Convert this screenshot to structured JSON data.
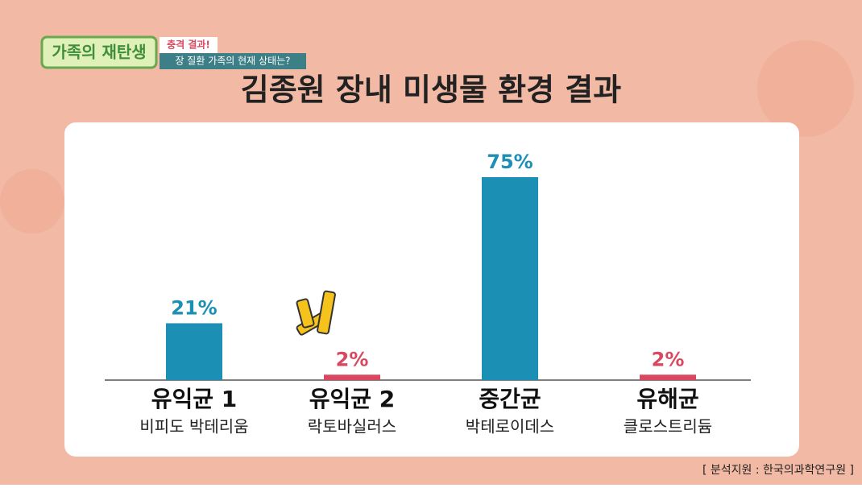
{
  "show": {
    "logo": "가족의 재탄생",
    "tag": "충격 결과!",
    "caption": "장 질환 가족의 현재 상태는?"
  },
  "chart_data": {
    "type": "bar",
    "title": "김종원 장내 미생물 환경 결과",
    "categories": [
      "유익균 1",
      "유익균 2",
      "중간균",
      "유해균"
    ],
    "subcategories": [
      "비피도 박테리움",
      "락토바실러스",
      "박테로이데스",
      "클로스트리듐"
    ],
    "values": [
      21,
      2,
      75,
      2
    ],
    "value_labels": [
      "21%",
      "2%",
      "75%",
      "2%"
    ],
    "colors": [
      "#1b8fb4",
      "#d9485f",
      "#1b8fb4",
      "#d9485f"
    ]
  },
  "source": "[ 분석지원 : 한국의과학연구원 ]"
}
